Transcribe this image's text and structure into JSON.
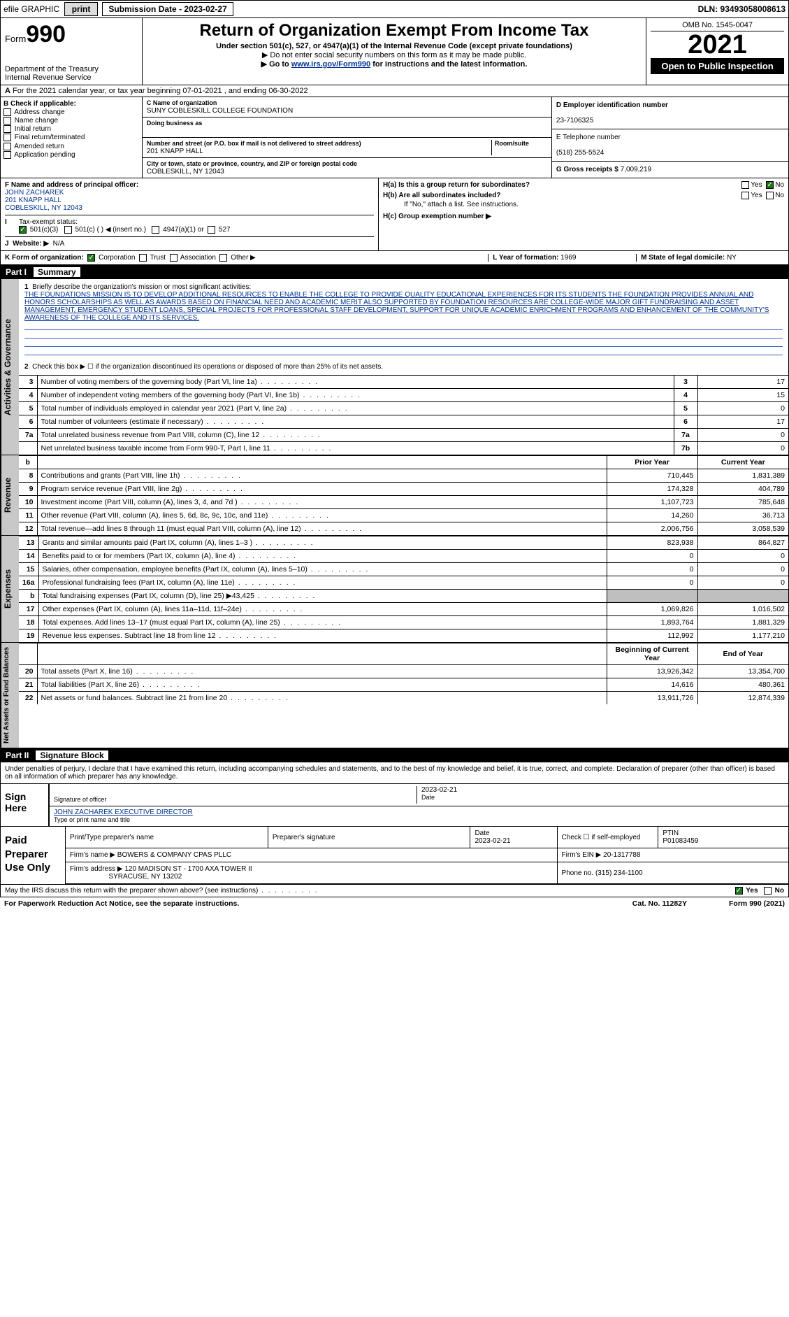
{
  "topbar": {
    "efile": "efile GRAPHIC",
    "print": "print",
    "submission_label": "Submission Date - 2023-02-27",
    "dln": "DLN: 93493058008613"
  },
  "header": {
    "form_prefix": "Form",
    "form_number": "990",
    "title": "Return of Organization Exempt From Income Tax",
    "subtitle": "Under section 501(c), 527, or 4947(a)(1) of the Internal Revenue Code (except private foundations)",
    "note1": "▶ Do not enter social security numbers on this form as it may be made public.",
    "note2_prefix": "▶ Go to ",
    "note2_link": "www.irs.gov/Form990",
    "note2_suffix": " for instructions and the latest information.",
    "dept": "Department of the Treasury",
    "irs": "Internal Revenue Service",
    "omb": "OMB No. 1545-0047",
    "year": "2021",
    "open": "Open to Public Inspection"
  },
  "taxyear": {
    "a": "A",
    "text": "For the 2021 calendar year, or tax year beginning 07-01-2021   , and ending 06-30-2022"
  },
  "checkboxes": {
    "header": "B Check if applicable:",
    "items": [
      "Address change",
      "Name change",
      "Initial return",
      "Final return/terminated",
      "Amended return",
      "Application pending"
    ]
  },
  "entity": {
    "c_label": "C Name of organization",
    "c_value": "SUNY COBLESKILL COLLEGE FOUNDATION",
    "dba_label": "Doing business as",
    "dba_value": "",
    "addr_label": "Number and street (or P.O. box if mail is not delivered to street address)",
    "room_label": "Room/suite",
    "addr_value": "201 KNAPP HALL",
    "city_label": "City or town, state or province, country, and ZIP or foreign postal code",
    "city_value": "COBLESKILL, NY  12043",
    "d_label": "D Employer identification number",
    "d_value": "23-7106325",
    "e_label": "E Telephone number",
    "e_value": "(518) 255-5524",
    "g_label": "G Gross receipts $",
    "g_value": "7,009,219"
  },
  "fh": {
    "f_label": "F  Name and address of principal officer:",
    "f_name": "JOHN ZACHAREK",
    "f_addr1": "201 KNAPP HALL",
    "f_addr2": "COBLESKILL, NY  12043",
    "ha": "H(a)  Is this a group return for subordinates?",
    "ha_yes": "Yes",
    "ha_no": "No",
    "hb": "H(b)  Are all subordinates included?",
    "hb_yes": "Yes",
    "hb_no": "No",
    "hb_note": "If \"No,\" attach a list. See instructions.",
    "hc": "H(c)  Group exemption number ▶"
  },
  "status": {
    "i": "I",
    "label": "Tax-exempt status:",
    "opt1": "501(c)(3)",
    "opt2": "501(c) (   ) ◀ (insert no.)",
    "opt3": "4947(a)(1) or",
    "opt4": "527"
  },
  "website": {
    "j": "J",
    "label": "Website: ▶",
    "value": "N/A"
  },
  "k": {
    "label": "K Form of organization:",
    "opts": [
      "Corporation",
      "Trust",
      "Association",
      "Other ▶"
    ],
    "l_label": "L Year of formation:",
    "l_value": "1969",
    "m_label": "M State of legal domicile:",
    "m_value": "NY"
  },
  "parts": {
    "p1_num": "Part I",
    "p1_title": "Summary",
    "p2_num": "Part II",
    "p2_title": "Signature Block"
  },
  "vtabs": {
    "ag": "Activities & Governance",
    "rev": "Revenue",
    "exp": "Expenses",
    "net": "Net Assets or Fund Balances"
  },
  "mission": {
    "q1": "1",
    "q1_label": "Briefly describe the organization's mission or most significant activities:",
    "text": "THE FOUNDATIONS MISSION IS TO DEVELOP ADDITIONAL RESOURCES TO ENABLE THE COLLEGE TO PROVIDE QUALITY EDUCATIONAL EXPERIENCES FOR ITS STUDENTS THE FOUNDATION PROVIDES ANNUAL AND HONORS SCHOLARSHIPS AS WELL AS AWARDS BASED ON FINANCIAL NEED AND ACADEMIC MERIT ALSO SUPPORTED BY FOUNDATION RESOURCES ARE COLLEGE-WIDE MAJOR GIFT FUNDRAISING AND ASSET MANAGEMENT, EMERGENCY STUDENT LOANS, SPECIAL PROJECTS FOR PROFESSIONAL STAFF DEVELOPMENT, SUPPORT FOR UNIQUE ACADEMIC ENRICHMENT PROGRAMS AND ENHANCEMENT OF THE COMMUNITY'S AWARENESS OF THE COLLEGE AND ITS SERVICES.",
    "q2": "2",
    "q2_label": "Check this box ▶ ☐ if the organization discontinued its operations or disposed of more than 25% of its net assets."
  },
  "gov_lines": [
    {
      "n": "3",
      "label": "Number of voting members of the governing body (Part VI, line 1a)",
      "box": "3",
      "val": "17"
    },
    {
      "n": "4",
      "label": "Number of independent voting members of the governing body (Part VI, line 1b)",
      "box": "4",
      "val": "15"
    },
    {
      "n": "5",
      "label": "Total number of individuals employed in calendar year 2021 (Part V, line 2a)",
      "box": "5",
      "val": "0"
    },
    {
      "n": "6",
      "label": "Total number of volunteers (estimate if necessary)",
      "box": "6",
      "val": "17"
    },
    {
      "n": "7a",
      "label": "Total unrelated business revenue from Part VIII, column (C), line 12",
      "box": "7a",
      "val": "0"
    },
    {
      "n": "",
      "label": "Net unrelated business taxable income from Form 990-T, Part I, line 11",
      "box": "7b",
      "val": "0"
    }
  ],
  "col_headers": {
    "b": "b",
    "prior": "Prior Year",
    "current": "Current Year"
  },
  "rev_lines": [
    {
      "n": "8",
      "label": "Contributions and grants (Part VIII, line 1h)",
      "p": "710,445",
      "c": "1,831,389"
    },
    {
      "n": "9",
      "label": "Program service revenue (Part VIII, line 2g)",
      "p": "174,328",
      "c": "404,789"
    },
    {
      "n": "10",
      "label": "Investment income (Part VIII, column (A), lines 3, 4, and 7d )",
      "p": "1,107,723",
      "c": "785,648"
    },
    {
      "n": "11",
      "label": "Other revenue (Part VIII, column (A), lines 5, 6d, 8c, 9c, 10c, and 11e)",
      "p": "14,260",
      "c": "36,713"
    },
    {
      "n": "12",
      "label": "Total revenue—add lines 8 through 11 (must equal Part VIII, column (A), line 12)",
      "p": "2,006,756",
      "c": "3,058,539"
    }
  ],
  "exp_lines": [
    {
      "n": "13",
      "label": "Grants and similar amounts paid (Part IX, column (A), lines 1–3 )",
      "p": "823,938",
      "c": "864,827"
    },
    {
      "n": "14",
      "label": "Benefits paid to or for members (Part IX, column (A), line 4)",
      "p": "0",
      "c": "0"
    },
    {
      "n": "15",
      "label": "Salaries, other compensation, employee benefits (Part IX, column (A), lines 5–10)",
      "p": "0",
      "c": "0"
    },
    {
      "n": "16a",
      "label": "Professional fundraising fees (Part IX, column (A), line 11e)",
      "p": "0",
      "c": "0"
    },
    {
      "n": "b",
      "label": "Total fundraising expenses (Part IX, column (D), line 25) ▶43,425",
      "p": "",
      "c": "",
      "shade": true
    },
    {
      "n": "17",
      "label": "Other expenses (Part IX, column (A), lines 11a–11d, 11f–24e)",
      "p": "1,069,826",
      "c": "1,016,502"
    },
    {
      "n": "18",
      "label": "Total expenses. Add lines 13–17 (must equal Part IX, column (A), line 25)",
      "p": "1,893,764",
      "c": "1,881,329"
    },
    {
      "n": "19",
      "label": "Revenue less expenses. Subtract line 18 from line 12",
      "p": "112,992",
      "c": "1,177,210"
    }
  ],
  "net_headers": {
    "begin": "Beginning of Current Year",
    "end": "End of Year"
  },
  "net_lines": [
    {
      "n": "20",
      "label": "Total assets (Part X, line 16)",
      "p": "13,926,342",
      "c": "13,354,700"
    },
    {
      "n": "21",
      "label": "Total liabilities (Part X, line 26)",
      "p": "14,616",
      "c": "480,361"
    },
    {
      "n": "22",
      "label": "Net assets or fund balances. Subtract line 21 from line 20",
      "p": "13,911,726",
      "c": "12,874,339"
    }
  ],
  "sig": {
    "perjury": "Under penalties of perjury, I declare that I have examined this return, including accompanying schedules and statements, and to the best of my knowledge and belief, it is true, correct, and complete. Declaration of preparer (other than officer) is based on all information of which preparer has any knowledge.",
    "sign_here": "Sign Here",
    "sig_officer": "Signature of officer",
    "date_label": "Date",
    "date": "2023-02-21",
    "name": "JOHN ZACHAREK EXECUTIVE DIRECTOR",
    "name_label": "Type or print name and title"
  },
  "prep": {
    "label": "Paid Preparer Use Only",
    "h1": "Print/Type preparer's name",
    "h2": "Preparer's signature",
    "h3": "Date",
    "h3v": "2023-02-21",
    "h4": "Check ☐ if self-employed",
    "h5": "PTIN",
    "h5v": "P01083459",
    "firm_label": "Firm's name    ▶",
    "firm": "BOWERS & COMPANY CPAS PLLC",
    "ein_label": "Firm's EIN ▶",
    "ein": "20-1317788",
    "addr_label": "Firm's address ▶",
    "addr1": "120 MADISON ST - 1700 AXA TOWER II",
    "addr2": "SYRACUSE, NY  13202",
    "phone_label": "Phone no.",
    "phone": "(315) 234-1100"
  },
  "footer": {
    "discuss": "May the IRS discuss this return with the preparer shown above? (see instructions)",
    "yes": "Yes",
    "no": "No",
    "pra": "For Paperwork Reduction Act Notice, see the separate instructions.",
    "cat": "Cat. No. 11282Y",
    "form": "Form 990 (2021)"
  }
}
